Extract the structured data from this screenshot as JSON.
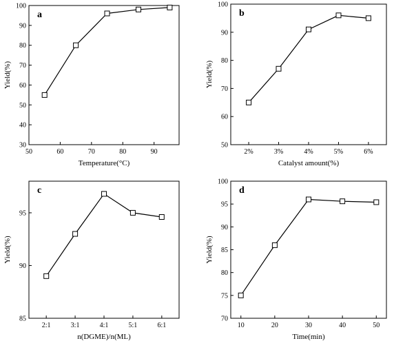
{
  "chart_data": [
    {
      "type": "line",
      "letter": "a",
      "xlabel": "Temperature(°C)",
      "ylabel": "Yield(%)",
      "x": [
        55,
        65,
        75,
        85,
        95
      ],
      "y": [
        55,
        80,
        96,
        98,
        99
      ],
      "xlim": [
        50,
        98
      ],
      "ylim": [
        30,
        100
      ],
      "xticks": [
        {
          "v": 50,
          "label": "50"
        },
        {
          "v": 60,
          "label": "60"
        },
        {
          "v": 70,
          "label": "70"
        },
        {
          "v": 80,
          "label": "80"
        },
        {
          "v": 90,
          "label": "90"
        }
      ],
      "yticks": [
        {
          "v": 30,
          "label": "30"
        },
        {
          "v": 40,
          "label": "40"
        },
        {
          "v": 50,
          "label": "50"
        },
        {
          "v": 60,
          "label": "60"
        },
        {
          "v": 70,
          "label": "70"
        },
        {
          "v": 80,
          "label": "80"
        },
        {
          "v": 90,
          "label": "90"
        },
        {
          "v": 100,
          "label": "100"
        }
      ],
      "marker": "square-open",
      "grid": false
    },
    {
      "type": "line",
      "letter": "b",
      "xlabel": "Catalyst amount(%)",
      "ylabel": "Yield(%)",
      "categories": [
        "2%",
        "3%",
        "4%",
        "5%",
        "6%"
      ],
      "y": [
        65,
        77,
        91,
        96,
        95
      ],
      "ylim": [
        50,
        100
      ],
      "yticks": [
        {
          "v": 50,
          "label": "50"
        },
        {
          "v": 60,
          "label": "60"
        },
        {
          "v": 70,
          "label": "70"
        },
        {
          "v": 80,
          "label": "80"
        },
        {
          "v": 90,
          "label": "90"
        },
        {
          "v": 100,
          "label": "100"
        }
      ],
      "marker": "square-open",
      "grid": false
    },
    {
      "type": "line",
      "letter": "c",
      "xlabel": "n(DGME)/n(ML)",
      "ylabel": "Yield(%)",
      "categories": [
        "2:1",
        "3:1",
        "4:1",
        "5:1",
        "6:1"
      ],
      "y": [
        89,
        93,
        96.8,
        95,
        94.6
      ],
      "ylim": [
        85,
        98
      ],
      "yticks": [
        {
          "v": 85,
          "label": "85"
        },
        {
          "v": 90,
          "label": "90"
        },
        {
          "v": 95,
          "label": "95"
        }
      ],
      "marker": "square-open",
      "grid": false
    },
    {
      "type": "line",
      "letter": "d",
      "xlabel": "Time(min)",
      "ylabel": "Yield(%)",
      "x": [
        10,
        20,
        30,
        40,
        50
      ],
      "y": [
        75,
        86,
        96,
        95.6,
        95.4
      ],
      "xlim": [
        7,
        53
      ],
      "ylim": [
        70,
        100
      ],
      "xticks": [
        {
          "v": 10,
          "label": "10"
        },
        {
          "v": 20,
          "label": "20"
        },
        {
          "v": 30,
          "label": "30"
        },
        {
          "v": 40,
          "label": "40"
        },
        {
          "v": 50,
          "label": "50"
        }
      ],
      "yticks": [
        {
          "v": 70,
          "label": "70"
        },
        {
          "v": 75,
          "label": "75"
        },
        {
          "v": 80,
          "label": "80"
        },
        {
          "v": 85,
          "label": "85"
        },
        {
          "v": 90,
          "label": "90"
        },
        {
          "v": 95,
          "label": "95"
        },
        {
          "v": 100,
          "label": "100"
        }
      ],
      "marker": "square-open",
      "grid": false
    }
  ]
}
